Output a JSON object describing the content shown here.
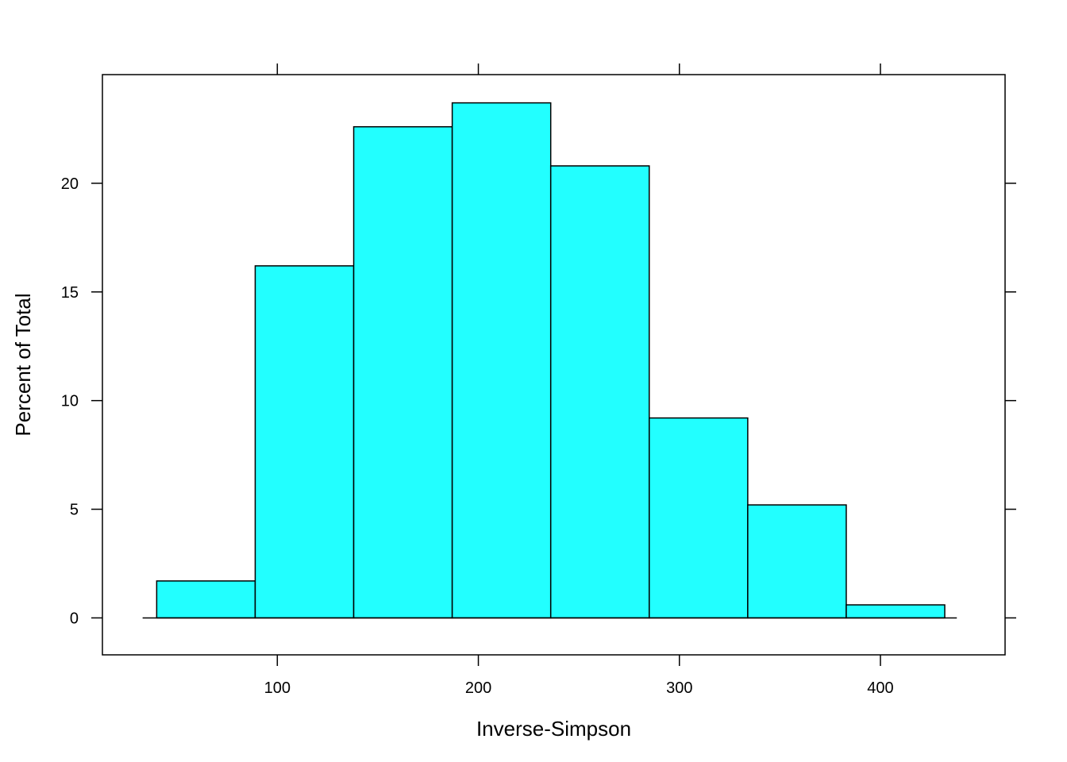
{
  "chart_data": {
    "type": "bar",
    "subtype": "histogram",
    "title": "",
    "xlabel": "Inverse-Simpson",
    "ylabel": "Percent of Total",
    "bins": [
      {
        "start": 40,
        "end": 89,
        "value": 1.7
      },
      {
        "start": 89,
        "end": 138,
        "value": 16.2
      },
      {
        "start": 138,
        "end": 187,
        "value": 22.6
      },
      {
        "start": 187,
        "end": 236,
        "value": 23.7
      },
      {
        "start": 236,
        "end": 285,
        "value": 20.8
      },
      {
        "start": 285,
        "end": 334,
        "value": 9.2
      },
      {
        "start": 334,
        "end": 383,
        "value": 5.2
      },
      {
        "start": 383,
        "end": 432,
        "value": 0.6
      }
    ],
    "xlim": [
      13,
      462
    ],
    "ylim": [
      -1.7,
      25.0
    ],
    "xticks": [
      100,
      200,
      300,
      400
    ],
    "yticks": [
      0,
      5,
      10,
      15,
      20
    ],
    "xtick_labels": [
      "100",
      "200",
      "300",
      "400"
    ],
    "ytick_labels": [
      "0",
      "5",
      "10",
      "15",
      "20"
    ],
    "baseline_range": [
      33,
      438
    ],
    "bar_color": "#22FFFF",
    "edge_color": "#000000",
    "grid": false,
    "legend": "none"
  }
}
